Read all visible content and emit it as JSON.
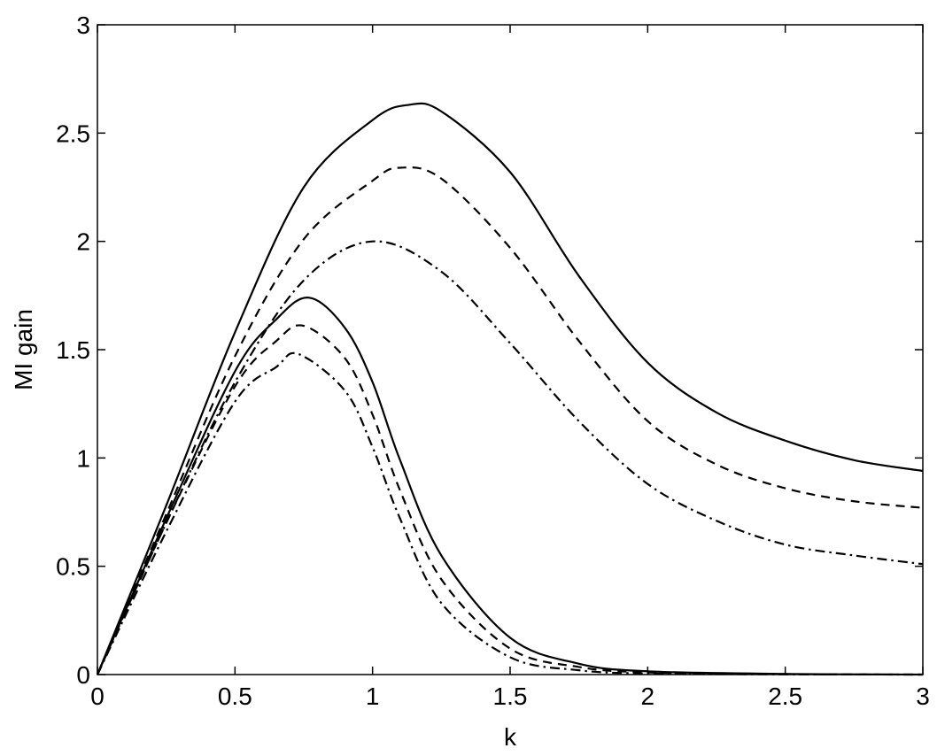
{
  "chart_data": {
    "type": "line",
    "title": "",
    "xlabel": "k",
    "ylabel": "MI gain",
    "xlim": [
      0,
      3
    ],
    "ylim": [
      0,
      3
    ],
    "xticks": [
      0,
      0.5,
      1,
      1.5,
      2,
      2.5,
      3
    ],
    "xtick_labels": [
      "0",
      "0.5",
      "1",
      "1.5",
      "2",
      "2.5",
      "3"
    ],
    "yticks": [
      0,
      0.5,
      1,
      1.5,
      2,
      2.5,
      3
    ],
    "ytick_labels": [
      "0",
      "0.5",
      "1",
      "1.5",
      "2",
      "2.5",
      "3"
    ],
    "grid": false,
    "legend": "none",
    "colors": {
      "line": "#000000",
      "axes": "#000000",
      "background": "#ffffff"
    },
    "series": [
      {
        "style": "solid",
        "x": [
          0,
          0.25,
          0.5,
          0.75,
          1.0,
          1.13,
          1.25,
          1.5,
          1.75,
          2.0,
          2.25,
          2.5,
          2.75,
          3.0
        ],
        "y": [
          0,
          0.78,
          1.58,
          2.25,
          2.56,
          2.63,
          2.6,
          2.32,
          1.84,
          1.44,
          1.21,
          1.08,
          0.99,
          0.94
        ]
      },
      {
        "style": "dashed",
        "x": [
          0,
          0.25,
          0.5,
          0.75,
          1.0,
          1.1,
          1.25,
          1.5,
          1.75,
          2.0,
          2.25,
          2.5,
          2.75,
          3.0
        ],
        "y": [
          0,
          0.74,
          1.47,
          2.01,
          2.28,
          2.34,
          2.29,
          1.97,
          1.54,
          1.17,
          0.97,
          0.86,
          0.8,
          0.77
        ]
      },
      {
        "style": "dashdot",
        "x": [
          0,
          0.25,
          0.5,
          0.75,
          1.0,
          1.25,
          1.5,
          1.75,
          2.0,
          2.25,
          2.5,
          2.75,
          3.0
        ],
        "y": [
          0,
          0.7,
          1.35,
          1.82,
          2.0,
          1.86,
          1.53,
          1.17,
          0.88,
          0.71,
          0.6,
          0.55,
          0.51
        ]
      },
      {
        "style": "solid",
        "x": [
          0,
          0.25,
          0.5,
          0.65,
          0.77,
          0.9,
          1.0,
          1.1,
          1.25,
          1.5,
          1.75,
          2.0,
          2.5,
          3.0
        ],
        "y": [
          0,
          0.72,
          1.4,
          1.64,
          1.74,
          1.6,
          1.35,
          0.99,
          0.55,
          0.17,
          0.05,
          0.015,
          0.003,
          0.0
        ]
      },
      {
        "style": "dashed",
        "x": [
          0,
          0.25,
          0.5,
          0.65,
          0.75,
          0.9,
          1.0,
          1.1,
          1.25,
          1.5,
          1.75,
          2.0,
          2.5,
          3.0
        ],
        "y": [
          0,
          0.7,
          1.33,
          1.54,
          1.61,
          1.46,
          1.2,
          0.85,
          0.44,
          0.12,
          0.035,
          0.01,
          0.002,
          0.0
        ]
      },
      {
        "style": "dashdot",
        "x": [
          0,
          0.25,
          0.5,
          0.65,
          0.73,
          0.9,
          1.0,
          1.1,
          1.25,
          1.5,
          1.75,
          2.0,
          2.5,
          3.0
        ],
        "y": [
          0,
          0.66,
          1.26,
          1.42,
          1.48,
          1.31,
          1.05,
          0.72,
          0.33,
          0.08,
          0.02,
          0.005,
          0.001,
          0.0
        ]
      }
    ]
  }
}
